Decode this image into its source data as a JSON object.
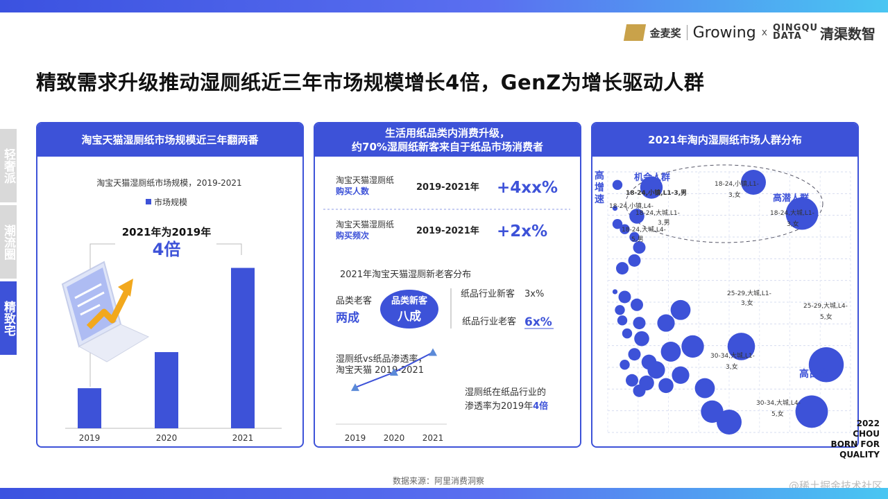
{
  "header": {
    "logo_jinmai": "金麦奖",
    "logo_growing": "Growing",
    "logo_x": "x",
    "logo_qingqu_en": "QINGQU DATA",
    "logo_qingqu_cn": "清渠数智"
  },
  "title": "精致需求升级推动湿厕纸近三年市场规模增长4倍，GenZ为增长驱动人群",
  "side_tabs": [
    {
      "label": "轻奢派",
      "active": false
    },
    {
      "label": "潮流圈",
      "active": false
    },
    {
      "label": "精致宅",
      "active": true
    }
  ],
  "panel1": {
    "header": "淘宝天猫湿厕纸市场规模近三年翻两番",
    "chart_title": "淘宝天猫湿厕纸市场规模，2019-2021",
    "legend": "市场规模",
    "callout_line1": "2021年为2019年",
    "callout_line2": "4倍",
    "bar_color": "#3d52d8",
    "icon": "laptop-growth-chart-icon"
  },
  "panel2": {
    "header_line1": "生活用纸品类内消费升级，",
    "header_line2": "约70%湿厕纸新客来自于纸品市场消费者",
    "row1_label1": "淘宝天猫湿厕纸",
    "row1_label2": "购买人数",
    "row1_period": "2019-2021年",
    "row1_value": "+4xx%",
    "row2_label1": "淘宝天猫湿厕纸",
    "row2_label2": "购买频次",
    "row2_period": "2019-2021年",
    "row2_value": "+2x%",
    "dist_title": "2021年淘宝天猫湿厕新老客分布",
    "old_label": "品类老客",
    "old_value": "两成",
    "new_label": "品类新客",
    "new_value": "八成",
    "new_industry_label": "纸品行业新客",
    "new_industry_value": "3x%",
    "old_industry_label": "纸品行业老客",
    "old_industry_value": "6x%",
    "pen_title_line1": "湿厕纸vs纸品渗透率，",
    "pen_title_line2": "淘宝天猫 2019-2021",
    "pen_note_line1": "湿厕纸在纸品行业的",
    "pen_note_line2a": "渗透率为2019年",
    "pen_note_line2b": "4倍"
  },
  "panel3": {
    "header": "2021年淘内湿厕纸市场人群分布",
    "y_label_chars": [
      "高",
      "增",
      "速"
    ],
    "label_opportunity": "机会人群",
    "label_potential": "高潜人群",
    "label_high_share": "高占比",
    "annotations": [
      {
        "text": "18-24,小镇,L1-3,男"
      },
      {
        "text": "18-24,小镇,L1-3,女"
      },
      {
        "text": "18-24,小镇,L4-5,男"
      },
      {
        "text": "18-24,大城,L1-3,男"
      },
      {
        "text": "18-24,大城,L1-3,女"
      },
      {
        "text": "18-24,大城,L4-5,男"
      },
      {
        "text": "25-29,大城,L1-3,女"
      },
      {
        "text": "25-29,大城,L4-5,女"
      },
      {
        "text": "30-34,大城,L1-3,女"
      },
      {
        "text": "30-34,大城,L4-5,女"
      }
    ]
  },
  "chart_data": [
    {
      "type": "bar",
      "title": "淘宝天猫湿厕纸市场规模，2019-2021",
      "categories": [
        "2019",
        "2020",
        "2021"
      ],
      "series": [
        {
          "name": "市场规模",
          "values": [
            1,
            1.9,
            4
          ]
        }
      ],
      "ylim": [
        0,
        4.5
      ],
      "grid": false,
      "legend": "top"
    },
    {
      "type": "line",
      "title": "湿厕纸vs纸品渗透率，淘宝天猫 2019-2021",
      "x": [
        "2019",
        "2020",
        "2021"
      ],
      "series": [
        {
          "values": [
            1,
            2.3,
            4
          ]
        }
      ],
      "ylim": [
        0,
        4.5
      ]
    },
    {
      "type": "scatter",
      "title": "2021年淘内湿厕纸市场人群分布",
      "xlabel": "",
      "ylabel": "高增速",
      "xlim": [
        0,
        100
      ],
      "ylim": [
        0,
        100
      ],
      "grid": true,
      "points": [
        {
          "x": 4,
          "y": 95,
          "size": 4
        },
        {
          "x": 3,
          "y": 86,
          "size": 2
        },
        {
          "x": 18,
          "y": 94,
          "size": 9
        },
        {
          "x": 4,
          "y": 80,
          "size": 4
        },
        {
          "x": 7,
          "y": 78,
          "size": 4
        },
        {
          "x": 11,
          "y": 75,
          "size": 4
        },
        {
          "x": 13,
          "y": 71,
          "size": 5
        },
        {
          "x": 11,
          "y": 66,
          "size": 5
        },
        {
          "x": 6,
          "y": 63,
          "size": 5
        },
        {
          "x": 12,
          "y": 83,
          "size": 6
        },
        {
          "x": 60,
          "y": 96,
          "size": 10
        },
        {
          "x": 80,
          "y": 84,
          "size": 13
        },
        {
          "x": 3,
          "y": 54,
          "size": 2
        },
        {
          "x": 7,
          "y": 52,
          "size": 5
        },
        {
          "x": 12,
          "y": 49,
          "size": 5
        },
        {
          "x": 5,
          "y": 47,
          "size": 4
        },
        {
          "x": 6,
          "y": 43,
          "size": 4
        },
        {
          "x": 13,
          "y": 42,
          "size": 5
        },
        {
          "x": 24,
          "y": 42,
          "size": 7
        },
        {
          "x": 30,
          "y": 47,
          "size": 8
        },
        {
          "x": 8,
          "y": 38,
          "size": 4
        },
        {
          "x": 14,
          "y": 36,
          "size": 6
        },
        {
          "x": 26,
          "y": 31,
          "size": 8
        },
        {
          "x": 35,
          "y": 33,
          "size": 9
        },
        {
          "x": 55,
          "y": 33,
          "size": 11
        },
        {
          "x": 11,
          "y": 30,
          "size": 5
        },
        {
          "x": 17,
          "y": 27,
          "size": 6
        },
        {
          "x": 7,
          "y": 26,
          "size": 4
        },
        {
          "x": 20,
          "y": 24,
          "size": 7
        },
        {
          "x": 30,
          "y": 22,
          "size": 7
        },
        {
          "x": 10,
          "y": 20,
          "size": 5
        },
        {
          "x": 16,
          "y": 19,
          "size": 6
        },
        {
          "x": 24,
          "y": 18,
          "size": 6
        },
        {
          "x": 13,
          "y": 16,
          "size": 5
        },
        {
          "x": 40,
          "y": 17,
          "size": 8
        },
        {
          "x": 43,
          "y": 8,
          "size": 9
        },
        {
          "x": 50,
          "y": 4,
          "size": 10
        },
        {
          "x": 90,
          "y": 26,
          "size": 14
        },
        {
          "x": 84,
          "y": 8,
          "size": 13
        }
      ]
    }
  ],
  "source": "数据来源：阿里消费洞察",
  "corner_lines": [
    "2022",
    "CHOU",
    "BORN FOR",
    "QUALITY"
  ],
  "watermark": "@稀土掘金技术社区"
}
